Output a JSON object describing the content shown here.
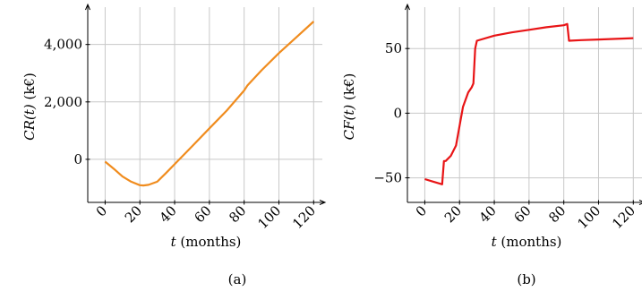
{
  "chart_data": [
    {
      "type": "line",
      "caption": "(a)",
      "xlabel_var": "t",
      "xlabel_unit": " (months)",
      "ylabel_var": "CR(t)",
      "ylabel_unit": " (k€)",
      "xlim": [
        -10,
        125
      ],
      "ylim": [
        -1500,
        5300
      ],
      "xticks": [
        0,
        20,
        40,
        60,
        80,
        100,
        120
      ],
      "xtick_labels": [
        "0",
        "20",
        "40",
        "60",
        "80",
        "100",
        "120"
      ],
      "yticks": [
        0,
        2000,
        4000
      ],
      "ytick_labels": [
        "0",
        "2,000",
        "4,000"
      ],
      "color": "#f08c1e",
      "series": [
        {
          "x": [
            0,
            5,
            10,
            15,
            20,
            22,
            25,
            30,
            35,
            40,
            50,
            60,
            70,
            80,
            82,
            90,
            100,
            110,
            120
          ],
          "y": [
            -80,
            -330,
            -600,
            -780,
            -900,
            -910,
            -890,
            -780,
            -480,
            -170,
            450,
            1080,
            1700,
            2400,
            2580,
            3100,
            3700,
            4250,
            4800
          ]
        }
      ]
    },
    {
      "type": "line",
      "caption": "(b)",
      "xlabel_var": "t",
      "xlabel_unit": " (months)",
      "ylabel_var": "CF(t)",
      "ylabel_unit": " (k€)",
      "xlim": [
        -10,
        125
      ],
      "ylim": [
        -69,
        82
      ],
      "xticks": [
        0,
        20,
        40,
        60,
        80,
        100,
        120
      ],
      "xtick_labels": [
        "0",
        "20",
        "40",
        "60",
        "80",
        "100",
        "120"
      ],
      "yticks": [
        -50,
        0,
        50
      ],
      "ytick_labels": [
        "−50",
        "0",
        "50"
      ],
      "color": "#e81416",
      "series": [
        {
          "x": [
            0,
            5,
            10,
            11,
            12,
            15,
            18,
            20,
            22,
            25,
            27,
            28,
            29,
            30,
            40,
            50,
            60,
            70,
            80,
            82,
            83,
            90,
            100,
            110,
            120
          ],
          "y": [
            -51,
            -53,
            -55,
            -37,
            -37,
            -33,
            -25,
            -10,
            5,
            16,
            20,
            23,
            50,
            56,
            60,
            62.5,
            64.5,
            66.5,
            68,
            69,
            56,
            56.5,
            57,
            57.5,
            58
          ]
        }
      ]
    }
  ]
}
